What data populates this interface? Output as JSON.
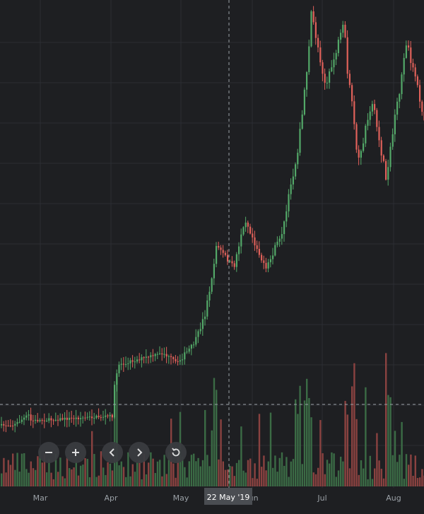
{
  "chart_data": {
    "type": "candlestick",
    "x_axis": {
      "tick_labels": [
        "Mar",
        "Apr",
        "May",
        "Jun",
        "Jul",
        "Aug"
      ]
    },
    "crosshair": {
      "date_label": "22 May '19"
    },
    "colors": {
      "background": "#1e1f22",
      "grid": "#2c2e33",
      "up": "#53a868",
      "down": "#e0615a",
      "volume_up": "#3b6b45",
      "volume_down": "#8a4240",
      "crosshair": "#9aa0a6"
    },
    "price_series": [
      {
        "start": 0,
        "end": 18,
        "p0": 2.0,
        "p1": 2.0
      },
      {
        "start": 18,
        "end": 40,
        "p0": 2.0,
        "p1": 3.9
      },
      {
        "start": 40,
        "end": 110,
        "p0": 2.8,
        "p1": 3.3
      },
      {
        "start": 110,
        "end": 158,
        "p0": 3.3,
        "p1": 3.7
      },
      {
        "start": 158,
        "end": 165,
        "p0": 3.9,
        "p1": 12.8
      },
      {
        "start": 165,
        "end": 230,
        "p0": 12.8,
        "p1": 14.8
      },
      {
        "start": 230,
        "end": 250,
        "p0": 14.8,
        "p1": 13.0
      },
      {
        "start": 250,
        "end": 275,
        "p0": 13.0,
        "p1": 16.8
      },
      {
        "start": 275,
        "end": 290,
        "p0": 16.8,
        "p1": 22.0
      },
      {
        "start": 290,
        "end": 305,
        "p0": 22.0,
        "p1": 34.0
      },
      {
        "start": 305,
        "end": 330,
        "p0": 34.0,
        "p1": 30.0
      },
      {
        "start": 330,
        "end": 345,
        "p0": 30.0,
        "p1": 39.0
      },
      {
        "start": 345,
        "end": 375,
        "p0": 39.0,
        "p1": 29.5
      },
      {
        "start": 375,
        "end": 400,
        "p0": 29.5,
        "p1": 37.0
      },
      {
        "start": 400,
        "end": 425,
        "p0": 37.0,
        "p1": 55.0
      },
      {
        "start": 425,
        "end": 440,
        "p0": 55.0,
        "p1": 75.0
      },
      {
        "start": 440,
        "end": 460,
        "p0": 75.0,
        "p1": 62.0
      },
      {
        "start": 460,
        "end": 485,
        "p0": 62.0,
        "p1": 73.0
      },
      {
        "start": 485,
        "end": 505,
        "p0": 73.0,
        "p1": 48.0
      },
      {
        "start": 505,
        "end": 525,
        "p0": 48.0,
        "p1": 60.0
      },
      {
        "start": 525,
        "end": 545,
        "p0": 60.0,
        "p1": 46.0
      },
      {
        "start": 545,
        "end": 575,
        "p0": 46.0,
        "p1": 70.0
      },
      {
        "start": 575,
        "end": 600,
        "p0": 70.0,
        "p1": 56.0
      }
    ]
  },
  "controls": {
    "zoom_out": "zoom-out",
    "zoom_in": "zoom-in",
    "scroll_left": "scroll-left",
    "scroll_right": "scroll-right",
    "reset": "reset"
  }
}
